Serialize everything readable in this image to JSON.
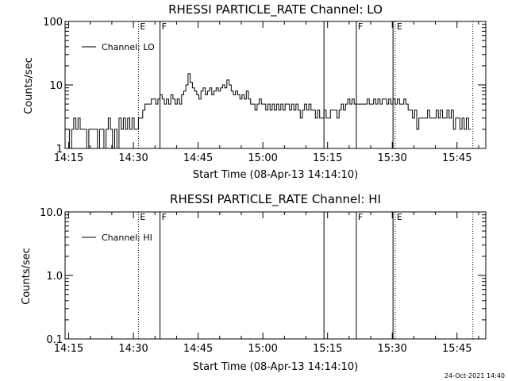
{
  "footer_timestamp": "24-Oct-2021 14:40",
  "chart_data": [
    {
      "type": "line",
      "title": "RHESSI PARTICLE_RATE Channel: LO",
      "xlabel": "Start Time (08-Apr-13 14:14:10)",
      "ylabel": "Counts/sec",
      "y_scale": "log",
      "ylim": [
        1,
        100
      ],
      "ytick_labels": [
        "1",
        "10",
        "100"
      ],
      "xlim": [
        "14:14:10",
        "15:51:40"
      ],
      "xtick_labels": [
        "14:15",
        "14:30",
        "14:45",
        "15:00",
        "15:15",
        "15:30",
        "15:45"
      ],
      "legend": {
        "placement": "top-left",
        "entries": [
          "Channel: LO"
        ]
      },
      "grid": false,
      "markers": [
        {
          "time": "14:31:10",
          "style": "dotted",
          "label": "E"
        },
        {
          "time": "14:36:10",
          "style": "solid",
          "label": "F"
        },
        {
          "time": "15:14:10",
          "style": "solid",
          "label": ""
        },
        {
          "time": "15:21:40",
          "style": "solid",
          "label": "F"
        },
        {
          "time": "15:30:10",
          "style": "solid",
          "label": ""
        },
        {
          "time": "15:30:40",
          "style": "dotted",
          "label": "E"
        },
        {
          "time": "15:48:40",
          "style": "dotted",
          "label": ""
        }
      ],
      "series": [
        {
          "name": "Channel: LO",
          "points": [
            [
              "14:14:10",
              2
            ],
            [
              "14:14:40",
              2
            ],
            [
              "14:15:10",
              1
            ],
            [
              "14:15:40",
              2
            ],
            [
              "14:16:10",
              3
            ],
            [
              "14:16:40",
              2
            ],
            [
              "14:17:10",
              3
            ],
            [
              "14:17:40",
              2
            ],
            [
              "14:18:10",
              2
            ],
            [
              "14:18:40",
              2
            ],
            [
              "14:19:10",
              1
            ],
            [
              "14:19:40",
              2
            ],
            [
              "14:20:10",
              2
            ],
            [
              "14:20:40",
              2
            ],
            [
              "14:21:10",
              2
            ],
            [
              "14:21:40",
              1
            ],
            [
              "14:22:10",
              2
            ],
            [
              "14:22:40",
              2
            ],
            [
              "14:23:10",
              1
            ],
            [
              "14:23:40",
              2
            ],
            [
              "14:24:10",
              3
            ],
            [
              "14:24:40",
              2
            ],
            [
              "14:25:10",
              1
            ],
            [
              "14:25:40",
              2
            ],
            [
              "14:26:10",
              1
            ],
            [
              "14:26:40",
              3
            ],
            [
              "14:27:10",
              2
            ],
            [
              "14:27:40",
              3
            ],
            [
              "14:28:10",
              2
            ],
            [
              "14:28:40",
              3
            ],
            [
              "14:29:10",
              2
            ],
            [
              "14:29:40",
              3
            ],
            [
              "14:30:10",
              2
            ],
            [
              "14:30:40",
              2
            ],
            [
              "14:31:10",
              3
            ],
            [
              "14:31:40",
              3
            ],
            [
              "14:32:10",
              4
            ],
            [
              "14:32:40",
              5
            ],
            [
              "14:33:10",
              5
            ],
            [
              "14:33:40",
              5
            ],
            [
              "14:34:10",
              6
            ],
            [
              "14:34:40",
              6
            ],
            [
              "14:35:10",
              5
            ],
            [
              "14:35:40",
              6
            ],
            [
              "14:36:10",
              7
            ],
            [
              "14:36:40",
              6
            ],
            [
              "14:37:10",
              5
            ],
            [
              "14:37:40",
              6
            ],
            [
              "14:38:10",
              5
            ],
            [
              "14:38:40",
              7
            ],
            [
              "14:39:10",
              6
            ],
            [
              "14:39:40",
              5
            ],
            [
              "14:40:10",
              6
            ],
            [
              "14:40:40",
              5
            ],
            [
              "14:41:10",
              7
            ],
            [
              "14:41:40",
              8
            ],
            [
              "14:42:10",
              10
            ],
            [
              "14:42:40",
              15
            ],
            [
              "14:43:10",
              11
            ],
            [
              "14:43:40",
              9
            ],
            [
              "14:44:10",
              8
            ],
            [
              "14:44:40",
              7
            ],
            [
              "14:45:10",
              6
            ],
            [
              "14:45:40",
              8
            ],
            [
              "14:46:10",
              9
            ],
            [
              "14:46:40",
              7
            ],
            [
              "14:47:10",
              8
            ],
            [
              "14:47:40",
              9
            ],
            [
              "14:48:10",
              7
            ],
            [
              "14:48:40",
              8
            ],
            [
              "14:49:10",
              9
            ],
            [
              "14:49:40",
              8
            ],
            [
              "14:50:10",
              9
            ],
            [
              "14:50:40",
              10
            ],
            [
              "14:51:10",
              9
            ],
            [
              "14:51:40",
              12
            ],
            [
              "14:52:10",
              10
            ],
            [
              "14:52:40",
              8
            ],
            [
              "14:53:10",
              7
            ],
            [
              "14:53:40",
              8
            ],
            [
              "14:54:10",
              7
            ],
            [
              "14:54:40",
              6
            ],
            [
              "14:55:10",
              7
            ],
            [
              "14:55:40",
              6
            ],
            [
              "14:56:10",
              8
            ],
            [
              "14:56:40",
              6
            ],
            [
              "14:57:10",
              5
            ],
            [
              "14:57:40",
              5
            ],
            [
              "14:58:10",
              4
            ],
            [
              "14:58:40",
              5
            ],
            [
              "14:59:10",
              6
            ],
            [
              "14:59:40",
              5
            ],
            [
              "15:00:10",
              5
            ],
            [
              "15:00:40",
              4
            ],
            [
              "15:01:10",
              5
            ],
            [
              "15:01:40",
              4
            ],
            [
              "15:02:10",
              5
            ],
            [
              "15:02:40",
              4
            ],
            [
              "15:03:10",
              5
            ],
            [
              "15:03:40",
              4
            ],
            [
              "15:04:10",
              5
            ],
            [
              "15:04:40",
              4
            ],
            [
              "15:05:10",
              5
            ],
            [
              "15:05:40",
              5
            ],
            [
              "15:06:10",
              4
            ],
            [
              "15:06:40",
              5
            ],
            [
              "15:07:10",
              4
            ],
            [
              "15:07:40",
              5
            ],
            [
              "15:08:10",
              4
            ],
            [
              "15:08:40",
              3
            ],
            [
              "15:09:10",
              4
            ],
            [
              "15:09:40",
              5
            ],
            [
              "15:10:10",
              4
            ],
            [
              "15:10:40",
              5
            ],
            [
              "15:11:10",
              4
            ],
            [
              "15:11:40",
              4
            ],
            [
              "15:12:10",
              3
            ],
            [
              "15:12:40",
              4
            ],
            [
              "15:13:10",
              3
            ],
            [
              "15:13:40",
              3
            ],
            [
              "15:14:10",
              4
            ],
            [
              "15:14:40",
              3
            ],
            [
              "15:15:10",
              3
            ],
            [
              "15:15:40",
              4
            ],
            [
              "15:16:10",
              4
            ],
            [
              "15:16:40",
              4
            ],
            [
              "15:17:10",
              3
            ],
            [
              "15:17:40",
              4
            ],
            [
              "15:18:10",
              5
            ],
            [
              "15:18:40",
              4
            ],
            [
              "15:19:10",
              5
            ],
            [
              "15:19:40",
              6
            ],
            [
              "15:20:10",
              5
            ],
            [
              "15:20:40",
              6
            ],
            [
              "15:21:10",
              5
            ],
            [
              "15:21:40",
              5
            ],
            [
              "15:22:10",
              5
            ],
            [
              "15:22:40",
              5
            ],
            [
              "15:23:10",
              5
            ],
            [
              "15:23:40",
              5
            ],
            [
              "15:24:10",
              6
            ],
            [
              "15:24:40",
              5
            ],
            [
              "15:25:10",
              5
            ],
            [
              "15:25:40",
              6
            ],
            [
              "15:26:10",
              5
            ],
            [
              "15:26:40",
              6
            ],
            [
              "15:27:10",
              5
            ],
            [
              "15:27:40",
              6
            ],
            [
              "15:28:10",
              6
            ],
            [
              "15:28:40",
              5
            ],
            [
              "15:29:10",
              6
            ],
            [
              "15:29:40",
              5
            ],
            [
              "15:30:10",
              6
            ],
            [
              "15:30:40",
              5
            ],
            [
              "15:31:10",
              6
            ],
            [
              "15:31:40",
              5
            ],
            [
              "15:32:10",
              5
            ],
            [
              "15:32:40",
              6
            ],
            [
              "15:33:10",
              5
            ],
            [
              "15:33:40",
              4
            ],
            [
              "15:34:10",
              4
            ],
            [
              "15:34:40",
              3
            ],
            [
              "15:35:10",
              4
            ],
            [
              "15:35:40",
              2
            ],
            [
              "15:36:10",
              3
            ],
            [
              "15:36:40",
              3
            ],
            [
              "15:37:10",
              3
            ],
            [
              "15:37:40",
              3
            ],
            [
              "15:38:10",
              4
            ],
            [
              "15:38:40",
              3
            ],
            [
              "15:39:10",
              3
            ],
            [
              "15:39:40",
              3
            ],
            [
              "15:40:10",
              4
            ],
            [
              "15:40:40",
              3
            ],
            [
              "15:41:10",
              4
            ],
            [
              "15:41:40",
              3
            ],
            [
              "15:42:10",
              3
            ],
            [
              "15:42:40",
              4
            ],
            [
              "15:43:10",
              3
            ],
            [
              "15:43:40",
              4
            ],
            [
              "15:44:10",
              2
            ],
            [
              "15:44:40",
              3
            ],
            [
              "15:45:10",
              3
            ],
            [
              "15:45:40",
              2
            ],
            [
              "15:46:10",
              3
            ],
            [
              "15:46:40",
              2
            ],
            [
              "15:47:10",
              3
            ],
            [
              "15:47:40",
              2
            ]
          ]
        }
      ]
    },
    {
      "type": "line",
      "title": "RHESSI PARTICLE_RATE Channel: HI",
      "xlabel": "Start Time (08-Apr-13 14:14:10)",
      "ylabel": "Counts/sec",
      "y_scale": "log",
      "ylim": [
        0.1,
        10
      ],
      "ytick_labels": [
        "0.1",
        "1.0",
        "10.0"
      ],
      "xlim": [
        "14:14:10",
        "15:51:40"
      ],
      "xtick_labels": [
        "14:15",
        "14:30",
        "14:45",
        "15:00",
        "15:15",
        "15:30",
        "15:45"
      ],
      "legend": {
        "placement": "top-left",
        "entries": [
          "Channel: HI"
        ]
      },
      "grid": false,
      "markers": [
        {
          "time": "14:31:10",
          "style": "dotted",
          "label": "E"
        },
        {
          "time": "14:36:10",
          "style": "solid",
          "label": "F"
        },
        {
          "time": "15:14:10",
          "style": "solid",
          "label": ""
        },
        {
          "time": "15:21:40",
          "style": "solid",
          "label": "F"
        },
        {
          "time": "15:30:10",
          "style": "solid",
          "label": ""
        },
        {
          "time": "15:30:40",
          "style": "dotted",
          "label": "E"
        },
        {
          "time": "15:48:40",
          "style": "dotted",
          "label": ""
        }
      ],
      "series": [
        {
          "name": "Channel: HI",
          "points": []
        }
      ]
    }
  ]
}
